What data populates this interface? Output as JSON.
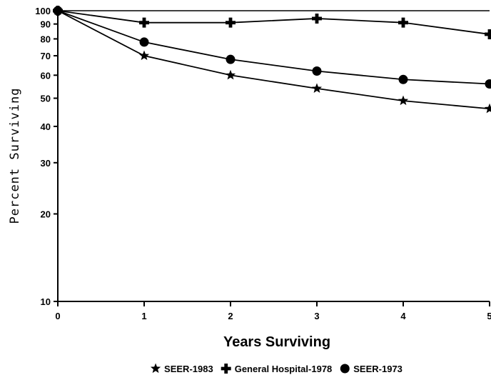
{
  "chart_data": {
    "type": "line",
    "xlabel": "Years Surviving",
    "ylabel": "Percent Surviving",
    "x": [
      0,
      1,
      2,
      3,
      4,
      5
    ],
    "xlim": [
      0,
      5
    ],
    "ylim": [
      10,
      100
    ],
    "yscale": "log",
    "yticks": [
      10,
      20,
      30,
      40,
      50,
      60,
      70,
      80,
      90,
      100
    ],
    "legend_position": "bottom",
    "series": [
      {
        "name": "SEER-1983",
        "marker": "star",
        "values": [
          100,
          70,
          60,
          54,
          49,
          46
        ]
      },
      {
        "name": "General Hospital-1978",
        "marker": "plus",
        "values": [
          100,
          91,
          91,
          94,
          91,
          83
        ]
      },
      {
        "name": "SEER-1973",
        "marker": "circle",
        "values": [
          100,
          78,
          68,
          62,
          58,
          56
        ]
      }
    ],
    "colors": {
      "line": "#000000",
      "background": "#ffffff"
    }
  }
}
